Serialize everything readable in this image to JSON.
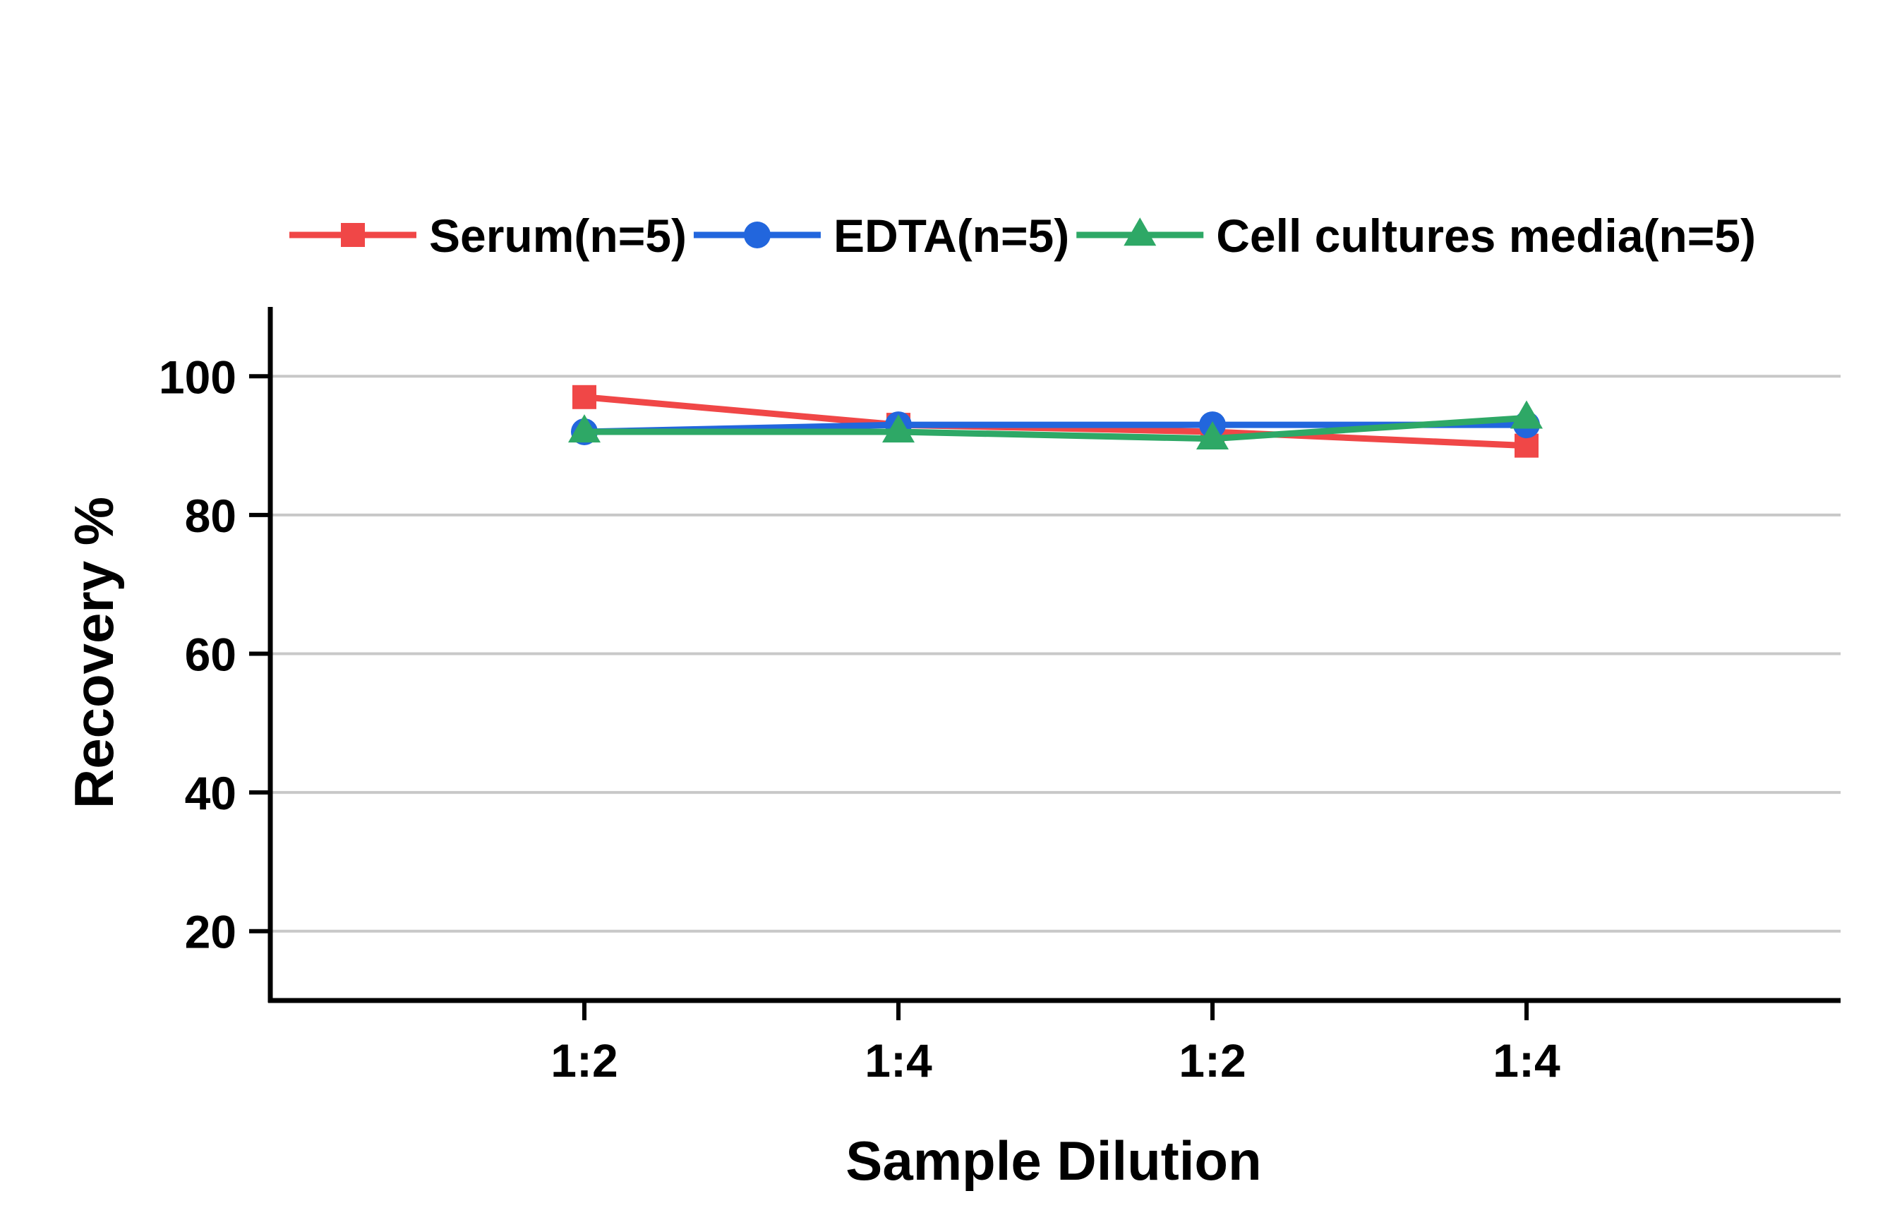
{
  "chart_data": {
    "type": "line",
    "title": "",
    "xlabel": "Sample Dilution",
    "ylabel": "Recovery %",
    "categories": [
      "1:2",
      "1:4",
      "1:2",
      "1:4"
    ],
    "ylim": [
      10,
      110
    ],
    "yticks": [
      20,
      40,
      60,
      80,
      100
    ],
    "grid": true,
    "legend_position": "top",
    "series": [
      {
        "name": "Serum(n=5)",
        "color": "#f04747",
        "marker": "square",
        "values": [
          97,
          93,
          92,
          90
        ]
      },
      {
        "name": "EDTA(n=5)",
        "color": "#2266dd",
        "marker": "circle",
        "values": [
          92,
          93,
          93,
          93
        ]
      },
      {
        "name": "Cell cultures media(n=5)",
        "color": "#2ea866",
        "marker": "triangle",
        "values": [
          92,
          92,
          91,
          94
        ]
      }
    ]
  }
}
